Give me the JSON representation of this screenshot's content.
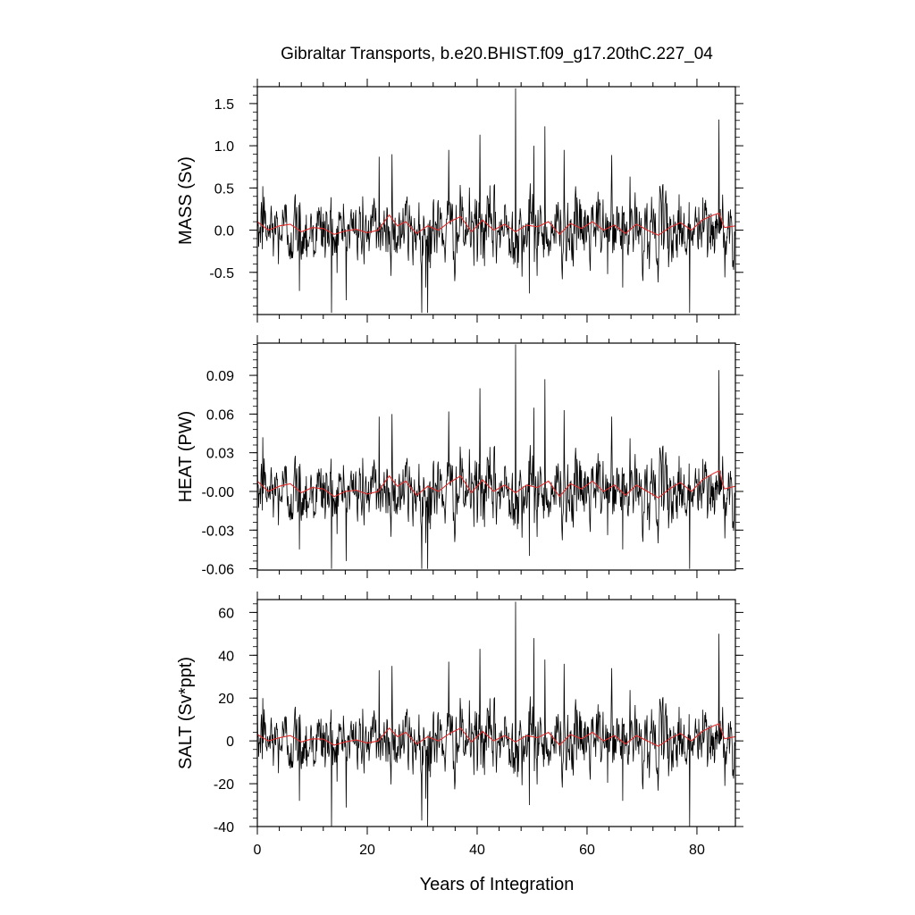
{
  "title": "Gibraltar Transports, b.e20.BHIST.f09_g17.20thC.227_04",
  "xlabel": "Years of Integration",
  "colors": {
    "raw": "#000000",
    "smooth": "#e32b2b",
    "frame": "#000000"
  },
  "chart_data": [
    {
      "type": "line",
      "panel": "mass",
      "ylabel": "MASS (Sv)",
      "xlim": [
        0,
        87
      ],
      "ylim": [
        -1.0,
        1.7
      ],
      "yticks": [
        -0.5,
        0.0,
        0.5,
        1.0,
        1.5
      ],
      "ytick_labels": [
        "-0.5",
        "0.0",
        "0.5",
        "1.0",
        "1.5"
      ],
      "xticks": [
        0,
        20,
        40,
        60,
        80
      ],
      "series": [
        {
          "kind": "monthly",
          "noise_sd": 0.2,
          "min": -0.98,
          "max": 1.68,
          "spikes": [
            [
              1,
              0.52
            ],
            [
              7.7,
              -0.72
            ],
            [
              13.5,
              -0.98
            ],
            [
              22.2,
              0.87
            ],
            [
              24.5,
              0.9
            ],
            [
              30.7,
              -0.68
            ],
            [
              31,
              -0.98
            ],
            [
              34.8,
              0.95
            ],
            [
              40.5,
              1.13
            ],
            [
              47,
              1.68
            ],
            [
              49.5,
              -0.75
            ],
            [
              50.3,
              1.0
            ],
            [
              52.3,
              1.23
            ],
            [
              55.8,
              0.95
            ],
            [
              64.5,
              0.89
            ],
            [
              66.5,
              -0.68
            ],
            [
              78.7,
              -0.98
            ],
            [
              84,
              1.31
            ]
          ]
        },
        {
          "kind": "smoothed",
          "x": [
            0,
            2,
            4,
            6,
            8,
            10,
            12,
            14,
            16,
            18,
            20,
            22,
            24,
            25.5,
            27,
            29,
            31,
            33,
            35,
            37,
            39,
            41,
            43,
            45,
            47,
            49,
            51,
            53,
            55,
            57,
            59,
            61,
            63,
            65,
            67,
            69,
            71,
            73,
            75,
            77,
            79,
            81,
            83,
            84,
            85,
            87
          ],
          "values": [
            0.1,
            0.0,
            0.05,
            0.07,
            -0.02,
            0.03,
            0.02,
            -0.05,
            -0.01,
            0.01,
            -0.03,
            0.0,
            0.18,
            0.05,
            0.1,
            -0.04,
            0.05,
            0.0,
            0.1,
            0.16,
            -0.02,
            0.12,
            0.0,
            0.07,
            -0.02,
            0.06,
            0.04,
            0.1,
            -0.05,
            0.08,
            0.02,
            0.1,
            0.0,
            0.06,
            -0.04,
            0.07,
            0.0,
            -0.06,
            0.03,
            0.09,
            0.0,
            0.12,
            0.18,
            0.2,
            0.03,
            0.05
          ]
        }
      ]
    },
    {
      "type": "line",
      "panel": "heat",
      "ylabel": "HEAT (PW)",
      "xlim": [
        0,
        87
      ],
      "ylim": [
        -0.061,
        0.115
      ],
      "yticks": [
        -0.06,
        -0.03,
        0.0,
        0.03,
        0.06,
        0.09
      ],
      "ytick_labels": [
        "-0.06",
        "-0.03",
        "-0.00",
        "0.03",
        "0.06",
        "0.09"
      ],
      "xticks": [
        0,
        20,
        40,
        60,
        80
      ],
      "series": [
        {
          "kind": "monthly",
          "noise_sd": 0.013,
          "min": -0.06,
          "max": 0.114,
          "spikes": [
            [
              1,
              0.042
            ],
            [
              7.7,
              -0.045
            ],
            [
              13.5,
              -0.06
            ],
            [
              22.2,
              0.058
            ],
            [
              24.5,
              0.06
            ],
            [
              30.7,
              -0.04
            ],
            [
              31,
              -0.06
            ],
            [
              34.8,
              0.062
            ],
            [
              40.5,
              0.08
            ],
            [
              47,
              0.114
            ],
            [
              49.5,
              -0.05
            ],
            [
              50.3,
              0.065
            ],
            [
              52.3,
              0.087
            ],
            [
              55.8,
              0.063
            ],
            [
              64.5,
              0.058
            ],
            [
              66.5,
              -0.045
            ],
            [
              78.7,
              -0.06
            ],
            [
              84,
              0.094
            ]
          ]
        },
        {
          "kind": "smoothed",
          "x": [
            0,
            2,
            4,
            6,
            8,
            10,
            12,
            14,
            16,
            18,
            20,
            22,
            24,
            25.5,
            27,
            29,
            31,
            33,
            35,
            37,
            39,
            41,
            43,
            45,
            47,
            49,
            51,
            53,
            55,
            57,
            59,
            61,
            63,
            65,
            67,
            69,
            71,
            73,
            75,
            77,
            79,
            81,
            83,
            84,
            85,
            87
          ],
          "values": [
            0.008,
            0.0,
            0.004,
            0.006,
            -0.001,
            0.003,
            0.002,
            -0.004,
            0.0,
            0.001,
            -0.002,
            0.0,
            0.012,
            0.004,
            0.008,
            -0.003,
            0.004,
            0.0,
            0.007,
            0.012,
            -0.001,
            0.009,
            0.0,
            0.005,
            -0.001,
            0.005,
            0.003,
            0.008,
            -0.004,
            0.006,
            0.002,
            0.008,
            0.0,
            0.005,
            -0.003,
            0.005,
            0.0,
            -0.005,
            0.002,
            0.007,
            0.0,
            0.009,
            0.014,
            0.016,
            0.002,
            0.004
          ]
        }
      ]
    },
    {
      "type": "line",
      "panel": "salt",
      "ylabel": "SALT (Sv*ppt)",
      "xlim": [
        0,
        87
      ],
      "ylim": [
        -40,
        66
      ],
      "yticks": [
        -40,
        -20,
        0,
        20,
        40,
        60
      ],
      "ytick_labels": [
        "-40",
        "-20",
        "0",
        "20",
        "40",
        "60"
      ],
      "xticks": [
        0,
        20,
        40,
        60,
        80
      ],
      "xtick_labels": [
        "0",
        "20",
        "40",
        "60",
        "80"
      ],
      "series": [
        {
          "kind": "monthly",
          "noise_sd": 7.5,
          "min": -40,
          "max": 65,
          "spikes": [
            [
              1,
              20
            ],
            [
              7.7,
              -28
            ],
            [
              13.5,
              -40
            ],
            [
              22.2,
              33
            ],
            [
              24.5,
              35
            ],
            [
              30.7,
              -27
            ],
            [
              31,
              -40
            ],
            [
              34.8,
              37
            ],
            [
              40.5,
              43
            ],
            [
              47,
              65
            ],
            [
              49.5,
              -30
            ],
            [
              50.3,
              48
            ],
            [
              52.3,
              38
            ],
            [
              55.8,
              36
            ],
            [
              64.5,
              34
            ],
            [
              66.5,
              -28
            ],
            [
              78.7,
              -40
            ],
            [
              84,
              50
            ]
          ]
        },
        {
          "kind": "smoothed",
          "x": [
            0,
            2,
            4,
            6,
            8,
            10,
            12,
            14,
            16,
            18,
            20,
            22,
            24,
            25.5,
            27,
            29,
            31,
            33,
            35,
            37,
            39,
            41,
            43,
            45,
            47,
            49,
            51,
            53,
            55,
            57,
            59,
            61,
            63,
            65,
            67,
            69,
            71,
            73,
            75,
            77,
            79,
            81,
            83,
            84,
            85,
            87
          ],
          "values": [
            3,
            0,
            1.5,
            2.5,
            -0.5,
            1,
            0.8,
            -2,
            -0.5,
            0.5,
            -1,
            0,
            6,
            2,
            4,
            -1.5,
            2,
            0,
            3.5,
            6,
            -0.5,
            4.5,
            0,
            2.5,
            -0.5,
            2.5,
            1.5,
            4,
            -2,
            3,
            1,
            4,
            0,
            2.5,
            -1.5,
            2.5,
            0,
            -2.5,
            1,
            3.5,
            0,
            4.5,
            7,
            8,
            1,
            2
          ]
        }
      ]
    }
  ]
}
